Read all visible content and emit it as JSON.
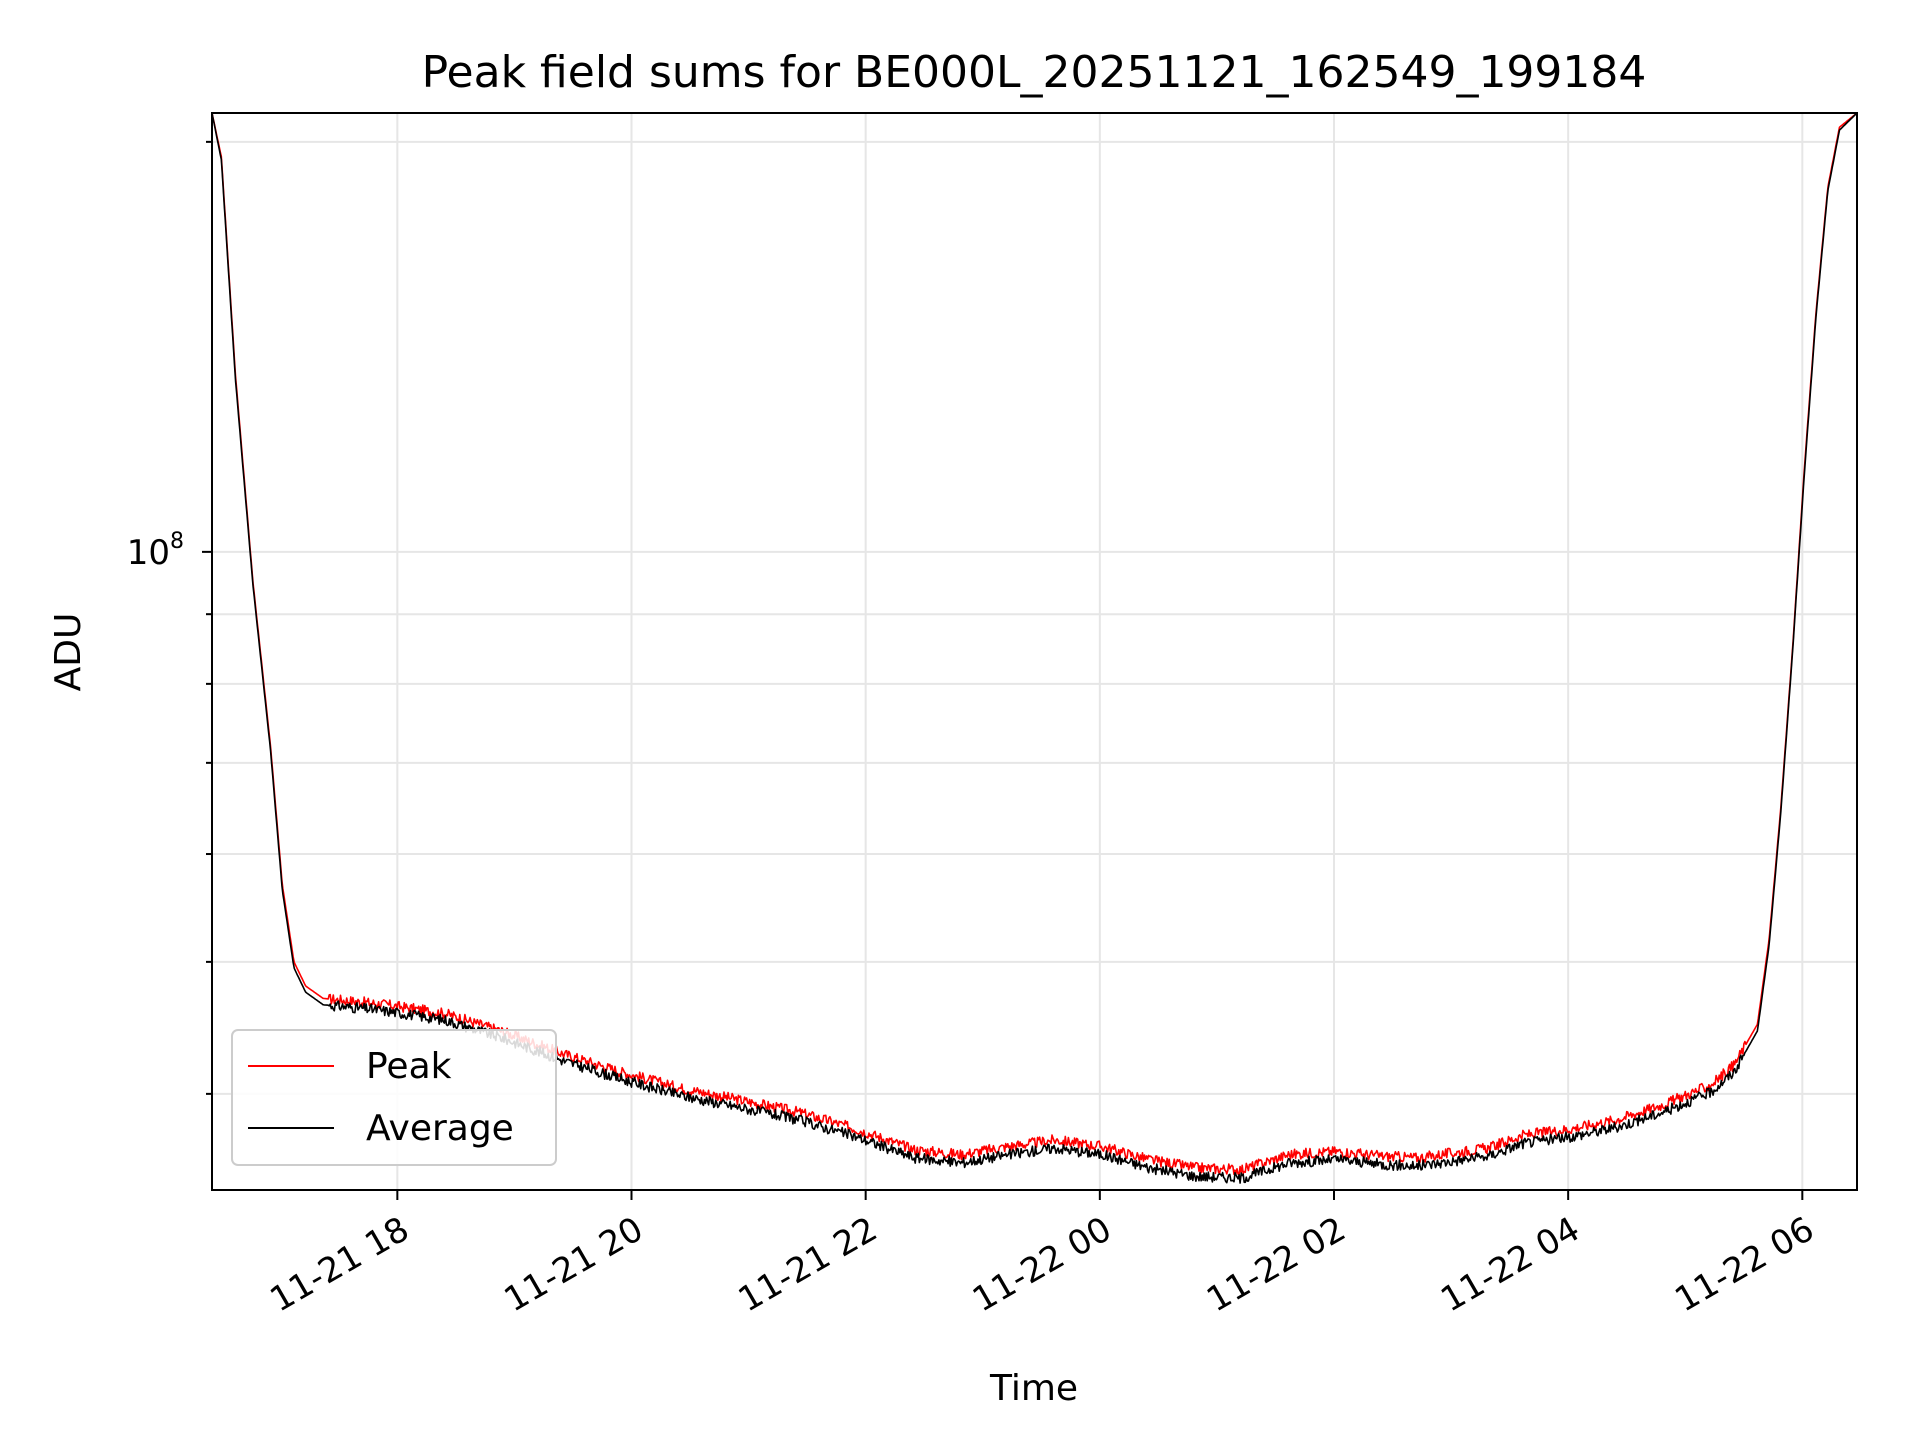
{
  "colors": {
    "peak": "#ff0000",
    "average": "#000000",
    "grid": "#e6e6e6",
    "frame": "#000000"
  },
  "chart_data": {
    "type": "line",
    "title": "Peak field sums for BE000L_20251121_162549_199184",
    "xlabel": "Time",
    "ylabel": "ADU",
    "yscale": "log",
    "x_unit": "hours since 11-21 16:25",
    "xlim": [
      0,
      14.05
    ],
    "ylim": [
      34000000,
      210000000
    ],
    "grid": true,
    "legend_position": "lower-left",
    "xtick_labels": [
      "11-21 18",
      "11-21 20",
      "11-21 22",
      "11-22 00",
      "11-22 02",
      "11-22 04",
      "11-22 06"
    ],
    "xtick_values": [
      1.583,
      3.583,
      5.583,
      7.583,
      9.583,
      11.583,
      13.583
    ],
    "ytick_label": {
      "base": "10",
      "exponent": "8"
    },
    "ytick_value": 100000000,
    "ygrid_values": [
      40000000,
      50000000,
      60000000,
      70000000,
      80000000,
      90000000,
      100000000,
      200000000
    ],
    "series": [
      {
        "name": "Peak",
        "x": [
          0,
          0.08,
          0.2,
          0.35,
          0.5,
          0.6,
          0.7,
          0.8,
          0.95,
          1.2,
          1.5,
          2.0,
          2.5,
          3.0,
          3.5,
          4.0,
          4.5,
          5.0,
          5.5,
          6.0,
          6.4,
          6.8,
          7.2,
          7.6,
          8.0,
          8.4,
          8.8,
          9.2,
          9.6,
          10.0,
          10.3,
          10.6,
          10.9,
          11.2,
          11.6,
          12.0,
          12.4,
          12.8,
          13.0,
          13.2,
          13.3,
          13.4,
          13.5,
          13.6,
          13.7,
          13.8,
          13.9,
          14.05
        ],
        "values": [
          210000000,
          195000000,
          135000000,
          95000000,
          72000000,
          57000000,
          50000000,
          48000000,
          47000000,
          46800000,
          46500000,
          45800000,
          44400000,
          42800000,
          41500000,
          40400000,
          39600000,
          38800000,
          37700000,
          36400000,
          36100000,
          36600000,
          37000000,
          36600000,
          35800000,
          35300000,
          35200000,
          36100000,
          36300000,
          36000000,
          35900000,
          36200000,
          36500000,
          37300000,
          37700000,
          38300000,
          39300000,
          40600000,
          42000000,
          45000000,
          52000000,
          65000000,
          85000000,
          115000000,
          150000000,
          185000000,
          205000000,
          210000000
        ]
      },
      {
        "name": "Average",
        "x": [
          0,
          0.08,
          0.2,
          0.35,
          0.5,
          0.6,
          0.7,
          0.8,
          0.95,
          1.2,
          1.5,
          2.0,
          2.5,
          3.0,
          3.5,
          4.0,
          4.5,
          5.0,
          5.5,
          6.0,
          6.4,
          6.8,
          7.2,
          7.6,
          8.0,
          8.4,
          8.8,
          9.2,
          9.6,
          10.0,
          10.3,
          10.6,
          10.9,
          11.2,
          11.6,
          12.0,
          12.4,
          12.8,
          13.0,
          13.2,
          13.3,
          13.4,
          13.5,
          13.6,
          13.7,
          13.8,
          13.9,
          14.05
        ],
        "values": [
          210000000,
          194000000,
          134000000,
          94500000,
          71500000,
          56500000,
          49500000,
          47500000,
          46500000,
          46300000,
          46000000,
          45300000,
          43900000,
          42300000,
          41000000,
          39900000,
          39100000,
          38300000,
          37200000,
          35900000,
          35600000,
          36100000,
          36500000,
          36100000,
          35300000,
          34800000,
          34700000,
          35600000,
          35800000,
          35500000,
          35400000,
          35700000,
          36000000,
          36800000,
          37200000,
          37800000,
          38800000,
          40100000,
          41500000,
          44500000,
          51500000,
          64500000,
          84500000,
          114000000,
          149000000,
          184000000,
          204000000,
          210000000
        ]
      }
    ],
    "legend": [
      {
        "label": "Peak",
        "color": "#ff0000"
      },
      {
        "label": "Average",
        "color": "#000000"
      }
    ]
  }
}
